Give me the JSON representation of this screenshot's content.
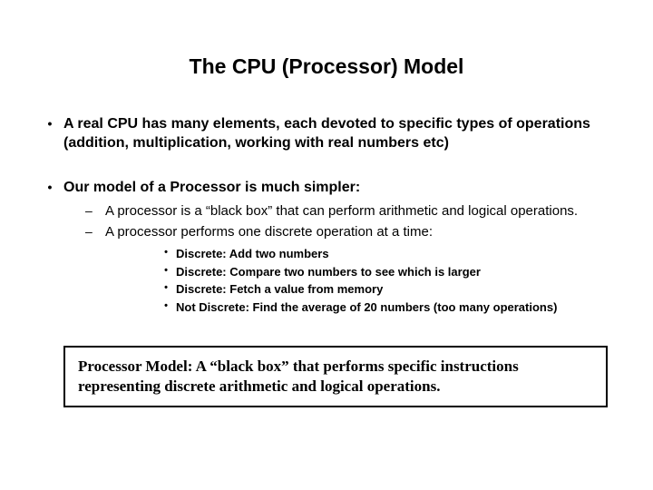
{
  "title": "The CPU (Processor) Model",
  "bullets": [
    {
      "text": "A real CPU has many elements, each devoted to specific types of operations (addition, multiplication, working with real numbers etc)"
    },
    {
      "text": "Our model of a Processor is much simpler:",
      "sub": [
        {
          "text": "A processor is a “black box” that can perform arithmetic and logical operations."
        },
        {
          "text": "A processor performs one discrete operation at a time:",
          "sub": [
            {
              "text": "Discrete:  Add two numbers"
            },
            {
              "text": "Discrete: Compare two numbers to see which is larger"
            },
            {
              "text": "Discrete: Fetch a value from memory"
            },
            {
              "text": "Not Discrete:  Find the average of 20 numbers (too many operations)"
            }
          ]
        }
      ]
    }
  ],
  "callout": "Processor Model: A “black box” that performs specific instructions representing discrete arithmetic and logical operations.",
  "colors": {
    "background": "#ffffff",
    "text": "#000000",
    "border": "#000000"
  }
}
